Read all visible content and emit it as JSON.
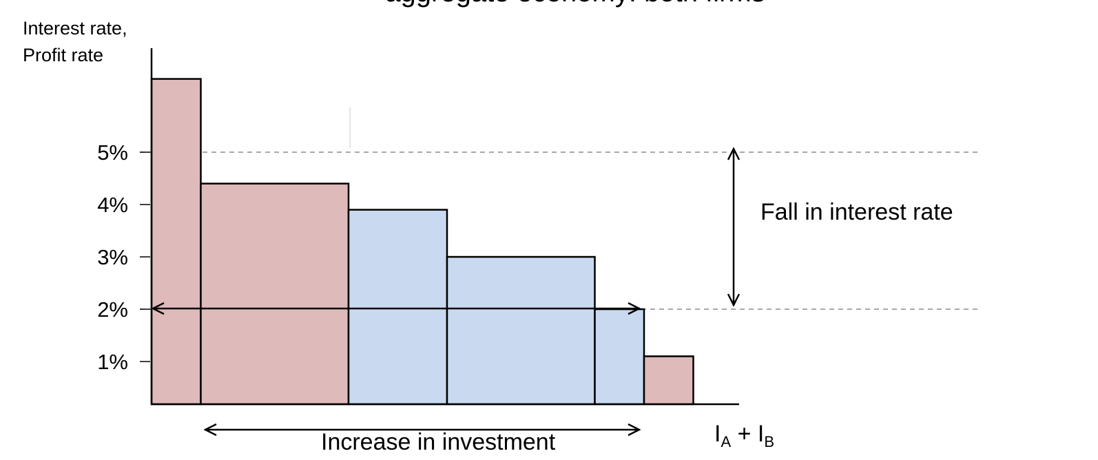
{
  "chart_data": {
    "type": "bar",
    "title": "aggregate economy: both firms",
    "ylabel_lines": [
      "Interest rate,",
      "Profit rate"
    ],
    "xlabel": {
      "main": "I",
      "sub_a": "A",
      "plus": " + ",
      "sub_b": "B"
    },
    "y_ticks": [
      {
        "value": 5,
        "label": "5%"
      },
      {
        "value": 4,
        "label": "4%"
      },
      {
        "value": 3,
        "label": "3%"
      },
      {
        "value": 2,
        "label": "2%"
      },
      {
        "value": 1,
        "label": "1%"
      }
    ],
    "ylim": [
      0,
      6.4
    ],
    "bars": [
      {
        "firm": "A",
        "width": 1.0,
        "value": 6.4
      },
      {
        "firm": "A",
        "width": 3.0,
        "value": 4.4
      },
      {
        "firm": "B",
        "width": 2.0,
        "value": 3.9
      },
      {
        "firm": "B",
        "width": 3.0,
        "value": 3.0
      },
      {
        "firm": "B",
        "width": 1.0,
        "value": 2.0
      },
      {
        "firm": "A",
        "width": 1.0,
        "value": 1.1
      }
    ],
    "reference_lines": [
      5,
      2
    ],
    "annotations": {
      "fall": "Fall in interest rate",
      "increase": "Increase in investment"
    },
    "colors": {
      "A": "#dfbaba",
      "B": "#c9d9ef",
      "ref": "#8a8a8a"
    }
  }
}
